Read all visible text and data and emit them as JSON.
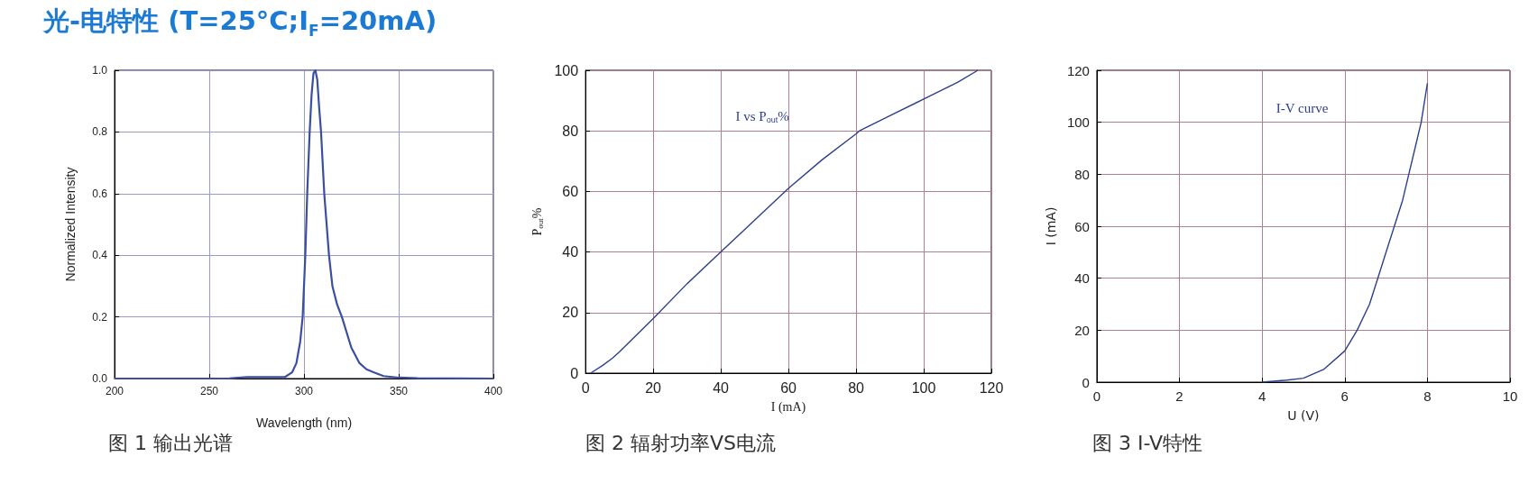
{
  "chart_data": [
    {
      "type": "line",
      "title": "光-电特性 (T=25°C;I$_{F}$=20mA)",
      "xlabel": "Wavelength (nm)",
      "ylabel": "Normalized Intensity",
      "annotations": [
        "图 1 输出光谱"
      ],
      "x": [
        200,
        260,
        270,
        280,
        290,
        293.7,
        296,
        298,
        299.3,
        300,
        300.7,
        301.7,
        303,
        304,
        305,
        306,
        307,
        308,
        309,
        310.7,
        313.2,
        315,
        317.5,
        320,
        322.5,
        325,
        329.3,
        333,
        337,
        342,
        350,
        360,
        400
      ],
      "series": [
        {
          "color": "#3a4fa0",
          "values": [
            0,
            0,
            0.005,
            0.005,
            0.005,
            0.02,
            0.05,
            0.12,
            0.2,
            0.3,
            0.4,
            0.6,
            0.8,
            0.92,
            0.99,
            1.0,
            0.97,
            0.88,
            0.8,
            0.6,
            0.4,
            0.3,
            0.24,
            0.2,
            0.15,
            0.1,
            0.05,
            0.03,
            0.02,
            0.008,
            0.003,
            0.001,
            0
          ]
        }
      ],
      "xlim": [
        200,
        400
      ],
      "xticks": [
        200,
        250,
        300,
        350,
        400
      ],
      "ylim": [
        0,
        1
      ],
      "yticks": [
        {
          "value": 0,
          "label": "0.0"
        },
        0.2,
        0.4,
        0.6,
        0.8,
        {
          "value": 1,
          "label": "1.0"
        }
      ],
      "grid": true,
      "marker": "none"
    },
    {
      "type": "line",
      "xlabel": "I (mA)",
      "ylabel": "P$_{out}$%",
      "annotations": [
        "图 2 辐射功率VS电流"
      ],
      "x": [
        1.5,
        5,
        8,
        10,
        20,
        30,
        40,
        50,
        60,
        70,
        80,
        81,
        90,
        100,
        110,
        116
      ],
      "series": [
        {
          "name": "I vs P$_{out}$%",
          "color": "#2e3f8f",
          "values": [
            0,
            2.5,
            5,
            7,
            18,
            29.5,
            40,
            50.5,
            61,
            70.5,
            79,
            80,
            85,
            90.5,
            96,
            100
          ]
        }
      ],
      "xlim": [
        0,
        120
      ],
      "xticks": [
        0,
        20,
        40,
        60,
        80,
        100,
        120
      ],
      "ylim": [
        0,
        100
      ],
      "yticks": [
        0,
        20,
        40,
        60,
        80,
        100
      ],
      "grid": true,
      "marker": "none"
    },
    {
      "type": "line",
      "xlabel": "U (V)",
      "ylabel": "I (mA)",
      "annotations": [
        "图 3 I-V特性"
      ],
      "x": [
        4,
        4.6,
        5,
        5.5,
        6,
        6.3,
        6.6,
        6.8,
        7,
        7.2,
        7.4,
        7.55,
        7.7,
        7.85,
        8
      ],
      "series": [
        {
          "name": "I-V curve",
          "color": "#2e3f8f",
          "values": [
            0,
            0.8,
            1.5,
            5,
            12,
            20,
            30,
            40,
            50,
            60,
            70,
            80,
            90,
            100,
            115
          ]
        }
      ],
      "xlim": [
        0,
        10
      ],
      "xticks": [
        0,
        2,
        4,
        6,
        8,
        10
      ],
      "ylim": [
        0,
        120
      ],
      "yticks": [
        0,
        20,
        40,
        60,
        80,
        100,
        120
      ],
      "grid": true,
      "marker": "none"
    }
  ]
}
